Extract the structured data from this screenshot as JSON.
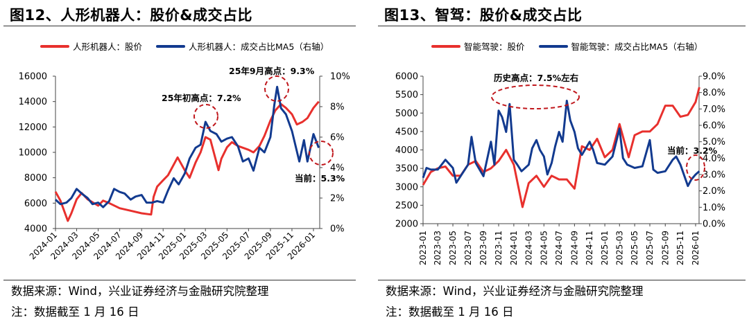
{
  "colors": {
    "price": "#e8302d",
    "ratio": "#123a8f",
    "annotation": "#c0171c"
  },
  "chart_data": [
    {
      "type": "line",
      "title": "图12、人形机器人：股价&成交占比",
      "legend_placement": "top",
      "x_type": "date",
      "x_ticks": [
        "2024-01",
        "2024-03",
        "2024-05",
        "2024-07",
        "2024-09",
        "2024-11",
        "2025-01",
        "2025-03",
        "2025-05",
        "2025-07",
        "2025-09",
        "2025-11",
        "2026-01"
      ],
      "y_left": {
        "lim": [
          4000,
          16000
        ],
        "ticks": [
          "4000",
          "6000",
          "8000",
          "10000",
          "12000",
          "14000",
          "16000"
        ]
      },
      "y_right": {
        "lim": [
          0,
          10
        ],
        "ticks": [
          "0%",
          "2%",
          "4%",
          "6%",
          "8%",
          "10%"
        ],
        "unit": "%"
      },
      "grid": false,
      "series": [
        {
          "name": "人形机器人：股价",
          "axis": "left",
          "color": "#e8302d",
          "x": [
            "2024-01-01",
            "2024-01-15",
            "2024-02-05",
            "2024-02-15",
            "2024-03-01",
            "2024-03-15",
            "2024-04-01",
            "2024-05-01",
            "2024-05-15",
            "2024-06-01",
            "2024-07-01",
            "2024-08-01",
            "2024-09-01",
            "2024-09-28",
            "2024-10-05",
            "2024-10-15",
            "2024-11-01",
            "2024-11-15",
            "2024-12-12",
            "2025-01-01",
            "2025-01-15",
            "2025-02-01",
            "2025-02-15",
            "2025-03-01",
            "2025-03-15",
            "2025-04-07",
            "2025-04-15",
            "2025-05-01",
            "2025-05-15",
            "2025-06-01",
            "2025-07-01",
            "2025-07-15",
            "2025-08-01",
            "2025-08-15",
            "2025-09-01",
            "2025-09-15",
            "2025-10-01",
            "2025-10-15",
            "2025-11-01",
            "2025-11-15",
            "2025-12-01",
            "2025-12-15",
            "2026-01-01",
            "2026-01-16"
          ],
          "values": [
            6900,
            6200,
            4600,
            5200,
            6300,
            6800,
            6300,
            5800,
            6200,
            6000,
            5600,
            5400,
            5200,
            5100,
            6500,
            7300,
            7800,
            8200,
            9600,
            8600,
            8000,
            9200,
            10000,
            11200,
            11000,
            8600,
            9500,
            10400,
            10800,
            10500,
            10200,
            10000,
            10500,
            11300,
            12500,
            13300,
            13800,
            13500,
            13000,
            12200,
            12400,
            12700,
            13500,
            14000
          ]
        },
        {
          "name": "人形机器人：成交占比MA5（右轴）",
          "axis": "right",
          "color": "#123a8f",
          "x": [
            "2024-01-01",
            "2024-01-15",
            "2024-02-01",
            "2024-02-15",
            "2024-03-01",
            "2024-03-15",
            "2024-04-01",
            "2024-04-15",
            "2024-05-01",
            "2024-05-15",
            "2024-06-01",
            "2024-06-15",
            "2024-07-01",
            "2024-07-15",
            "2024-08-01",
            "2024-08-15",
            "2024-09-01",
            "2024-09-15",
            "2024-10-01",
            "2024-10-15",
            "2024-11-01",
            "2024-11-15",
            "2024-12-01",
            "2024-12-15",
            "2025-01-01",
            "2025-01-15",
            "2025-02-01",
            "2025-02-15",
            "2025-03-01",
            "2025-03-15",
            "2025-04-01",
            "2025-04-15",
            "2025-05-01",
            "2025-05-15",
            "2025-06-01",
            "2025-06-15",
            "2025-07-01",
            "2025-07-15",
            "2025-08-01",
            "2025-08-15",
            "2025-09-01",
            "2025-09-12",
            "2025-09-20",
            "2025-10-01",
            "2025-10-15",
            "2025-11-01",
            "2025-11-22",
            "2025-12-05",
            "2025-12-15",
            "2026-01-01",
            "2026-01-16"
          ],
          "values": [
            1.9,
            1.6,
            1.7,
            2.0,
            2.6,
            2.3,
            2.0,
            1.6,
            1.7,
            1.4,
            1.8,
            2.6,
            2.4,
            2.3,
            1.9,
            2.1,
            2.2,
            1.7,
            1.7,
            1.8,
            1.7,
            2.5,
            3.3,
            2.9,
            3.6,
            4.6,
            5.3,
            5.5,
            7.0,
            6.4,
            6.2,
            5.7,
            5.9,
            6.0,
            5.4,
            4.4,
            4.6,
            3.8,
            5.3,
            5.0,
            6.0,
            8.1,
            9.3,
            7.9,
            7.5,
            6.4,
            4.4,
            5.8,
            4.4,
            6.2,
            5.3
          ]
        }
      ],
      "annotations": [
        "25年初高点：7.2%",
        "25年9月高点：9.3%",
        "当前：5.3%"
      ]
    },
    {
      "type": "line",
      "title": "图13、智驾：股价&成交占比",
      "legend_placement": "top",
      "x_type": "date",
      "x_ticks": [
        "2023-01",
        "2023-03",
        "2023-05",
        "2023-07",
        "2023-09",
        "2023-11",
        "2024-01",
        "2024-03",
        "2024-05",
        "2024-07",
        "2024-09",
        "2024-11",
        "2025-01",
        "2025-03",
        "2025-05",
        "2025-07",
        "2025-09",
        "2025-11",
        "2026-01"
      ],
      "y_left": {
        "lim": [
          2000,
          6000
        ],
        "ticks": [
          "2000",
          "2500",
          "3000",
          "3500",
          "4000",
          "4500",
          "5000",
          "5500",
          "6000"
        ]
      },
      "y_right": {
        "lim": [
          0,
          9
        ],
        "ticks": [
          "0.0%",
          "1.0%",
          "2.0%",
          "3.0%",
          "4.0%",
          "5.0%",
          "6.0%",
          "7.0%",
          "8.0%",
          "9.0%"
        ],
        "unit": "%"
      },
      "grid": false,
      "series": [
        {
          "name": "智能驾驶：股价",
          "axis": "left",
          "color": "#e8302d",
          "x": [
            "2023-01-01",
            "2023-02-01",
            "2023-03-01",
            "2023-04-01",
            "2023-05-01",
            "2023-06-01",
            "2023-07-01",
            "2023-08-01",
            "2023-09-01",
            "2023-10-01",
            "2023-11-01",
            "2023-12-01",
            "2024-01-01",
            "2024-02-05",
            "2024-03-01",
            "2024-04-01",
            "2024-05-01",
            "2024-06-01",
            "2024-07-01",
            "2024-08-01",
            "2024-09-01",
            "2024-10-01",
            "2024-11-01",
            "2024-12-01",
            "2025-01-01",
            "2025-02-01",
            "2025-03-01",
            "2025-04-07",
            "2025-05-01",
            "2025-06-01",
            "2025-07-01",
            "2025-08-01",
            "2025-09-01",
            "2025-10-01",
            "2025-11-01",
            "2025-12-01",
            "2026-01-01",
            "2026-01-16"
          ],
          "values": [
            3050,
            3400,
            3500,
            3550,
            3300,
            3300,
            3600,
            3700,
            3400,
            3500,
            3700,
            4000,
            3600,
            2450,
            3100,
            3300,
            3000,
            3300,
            3200,
            3200,
            2950,
            4100,
            4000,
            4300,
            3800,
            4000,
            4700,
            3800,
            4400,
            4500,
            4500,
            4700,
            5200,
            5200,
            4900,
            4950,
            5300,
            5700
          ]
        },
        {
          "name": "智能驾驶：成交占比MA5（右轴）",
          "axis": "right",
          "color": "#123a8f",
          "x": [
            "2023-01-01",
            "2023-01-15",
            "2023-02-01",
            "2023-03-01",
            "2023-04-01",
            "2023-05-01",
            "2023-05-15",
            "2023-06-01",
            "2023-07-01",
            "2023-07-15",
            "2023-08-01",
            "2023-09-01",
            "2023-10-01",
            "2023-10-15",
            "2023-11-01",
            "2023-11-15",
            "2023-12-01",
            "2023-12-15",
            "2024-01-01",
            "2024-01-15",
            "2024-02-01",
            "2024-03-01",
            "2024-03-15",
            "2024-04-01",
            "2024-04-15",
            "2024-05-01",
            "2024-05-15",
            "2024-06-01",
            "2024-06-15",
            "2024-07-01",
            "2024-07-15",
            "2024-08-01",
            "2024-08-15",
            "2024-09-01",
            "2024-09-15",
            "2024-10-01",
            "2024-11-01",
            "2024-11-15",
            "2024-12-01",
            "2025-01-01",
            "2025-02-01",
            "2025-03-01",
            "2025-03-15",
            "2025-04-01",
            "2025-05-01",
            "2025-06-01",
            "2025-07-01",
            "2025-07-15",
            "2025-08-01",
            "2025-09-01",
            "2025-10-01",
            "2025-10-15",
            "2025-11-01",
            "2025-12-01",
            "2025-12-15",
            "2026-01-01",
            "2026-01-16"
          ],
          "values": [
            2.8,
            3.4,
            3.3,
            3.3,
            3.9,
            3.4,
            2.5,
            2.9,
            3.6,
            5.3,
            3.7,
            2.9,
            5.0,
            3.6,
            6.9,
            6.5,
            5.6,
            7.3,
            3.9,
            3.6,
            3.2,
            3.6,
            4.6,
            5.1,
            4.5,
            4.1,
            3.0,
            3.7,
            4.7,
            5.6,
            5.0,
            7.5,
            6.3,
            5.6,
            4.6,
            4.2,
            5.0,
            4.5,
            3.7,
            3.6,
            4.1,
            5.8,
            4.0,
            3.6,
            3.4,
            3.5,
            5.1,
            3.3,
            3.1,
            3.2,
            3.9,
            4.1,
            3.6,
            2.3,
            2.7,
            3.0,
            3.2
          ]
        }
      ],
      "annotations": [
        "历史高点：7.5%左右",
        "当前：3.2%"
      ]
    }
  ],
  "footer": {
    "left": {
      "source": "数据来源：Wind，兴业证券经济与金融研究院整理",
      "note": "注：数据截至 1 月 16 日"
    },
    "right": {
      "source": "数据来源：Wind，兴业证券经济与金融研究院整理",
      "note": "注：数据截至 1 月 16 日"
    }
  }
}
